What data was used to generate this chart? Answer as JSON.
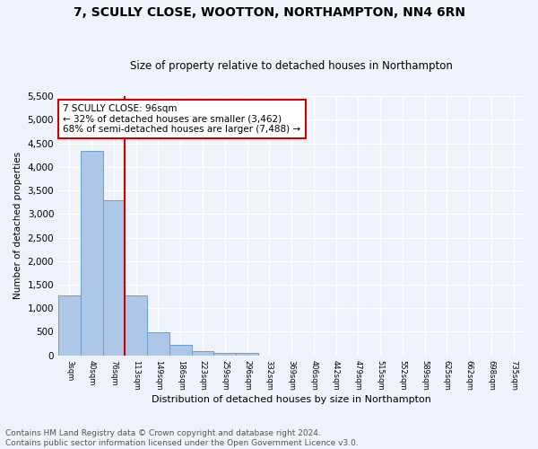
{
  "title": "7, SCULLY CLOSE, WOOTTON, NORTHAMPTON, NN4 6RN",
  "subtitle": "Size of property relative to detached houses in Northampton",
  "xlabel": "Distribution of detached houses by size in Northampton",
  "ylabel": "Number of detached properties",
  "bar_values": [
    1270,
    4330,
    3290,
    1280,
    490,
    215,
    85,
    60,
    55,
    0,
    0,
    0,
    0,
    0,
    0,
    0,
    0,
    0,
    0,
    0,
    0
  ],
  "bar_labels": [
    "3sqm",
    "40sqm",
    "76sqm",
    "113sqm",
    "149sqm",
    "186sqm",
    "223sqm",
    "259sqm",
    "296sqm",
    "332sqm",
    "369sqm",
    "406sqm",
    "442sqm",
    "479sqm",
    "515sqm",
    "552sqm",
    "589sqm",
    "625sqm",
    "662sqm",
    "698sqm",
    "735sqm"
  ],
  "bar_color": "#aec6e8",
  "bar_edge_color": "#6a9fd0",
  "vline_x": 2.5,
  "vline_color": "#cc0000",
  "annotation_text": "7 SCULLY CLOSE: 96sqm\n← 32% of detached houses are smaller (3,462)\n68% of semi-detached houses are larger (7,488) →",
  "annotation_box_color": "#ffffff",
  "annotation_box_edgecolor": "#cc0000",
  "ylim": [
    0,
    5500
  ],
  "yticks": [
    0,
    500,
    1000,
    1500,
    2000,
    2500,
    3000,
    3500,
    4000,
    4500,
    5000,
    5500
  ],
  "footer": "Contains HM Land Registry data © Crown copyright and database right 2024.\nContains public sector information licensed under the Open Government Licence v3.0.",
  "bg_color": "#eef2f9",
  "plot_bg_color": "#eef2f9",
  "title_fontsize": 10,
  "subtitle_fontsize": 8.5,
  "footer_fontsize": 6.5,
  "annotation_fontsize": 7.5
}
